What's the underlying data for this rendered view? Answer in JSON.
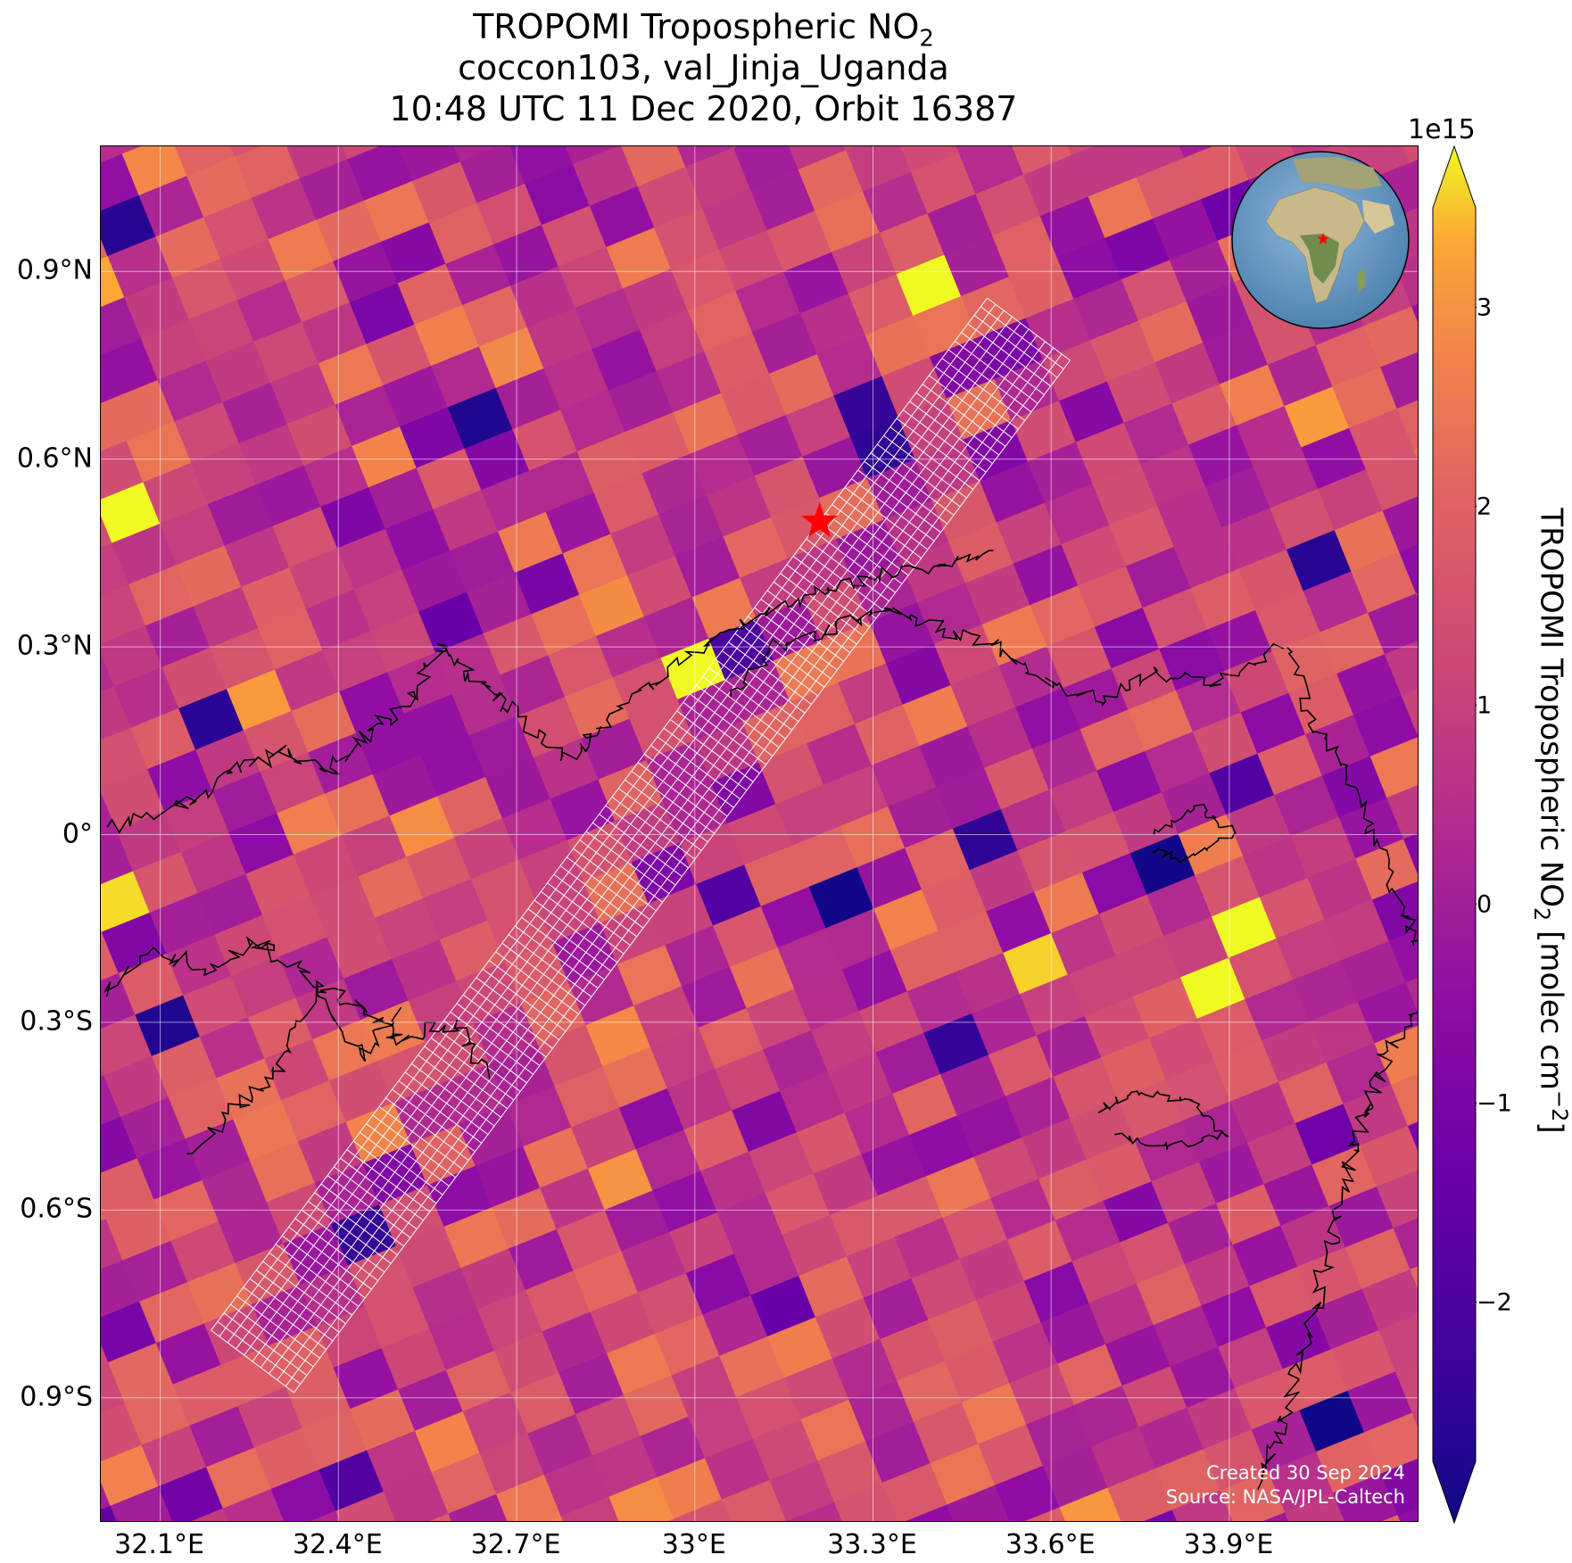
{
  "title": {
    "line1_main": "TROPOMI Tropospheric NO",
    "line1_sub": "2",
    "line2": "coccon103, val_Jinja_Uganda",
    "line3": "10:48 UTC 11 Dec 2020, Orbit 16387"
  },
  "x_ticks": [
    {
      "label": "32.1°E",
      "value": 32.1
    },
    {
      "label": "32.4°E",
      "value": 32.4
    },
    {
      "label": "32.7°E",
      "value": 32.7
    },
    {
      "label": "33°E",
      "value": 33.0
    },
    {
      "label": "33.3°E",
      "value": 33.3
    },
    {
      "label": "33.6°E",
      "value": 33.6
    },
    {
      "label": "33.9°E",
      "value": 33.9
    }
  ],
  "y_ticks": [
    {
      "label": "0.9°N",
      "value": 0.9
    },
    {
      "label": "0.6°N",
      "value": 0.6
    },
    {
      "label": "0.3°N",
      "value": 0.3
    },
    {
      "label": "0°",
      "value": 0.0
    },
    {
      "label": "0.3°S",
      "value": -0.3
    },
    {
      "label": "0.6°S",
      "value": -0.6
    },
    {
      "label": "0.9°S",
      "value": -0.9
    }
  ],
  "map_extent": {
    "lon_min": 32.0,
    "lon_max": 34.22,
    "lat_min": -1.1,
    "lat_max": 1.1
  },
  "site": {
    "lon": 33.21,
    "lat": 0.5,
    "color": "#ff0000"
  },
  "colorbar": {
    "label_main": "TROPOMI Tropospheric NO",
    "label_sub": "2",
    "label_unit": " [molec cm",
    "label_exp": "−2",
    "label_end": "]",
    "exponent": "1e15",
    "min": -2.8,
    "max": 3.5,
    "ticks": [
      {
        "label": "3",
        "value": 3
      },
      {
        "label": "2",
        "value": 2
      },
      {
        "label": "1",
        "value": 1
      },
      {
        "label": "0",
        "value": 0
      },
      {
        "label": "−1",
        "value": -1
      },
      {
        "label": "−2",
        "value": -2
      }
    ],
    "colormap": "plasma"
  },
  "credit": {
    "line1": "Created 30 Sep 2024",
    "line2": "Source: NASA/JPL-Caltech"
  }
}
